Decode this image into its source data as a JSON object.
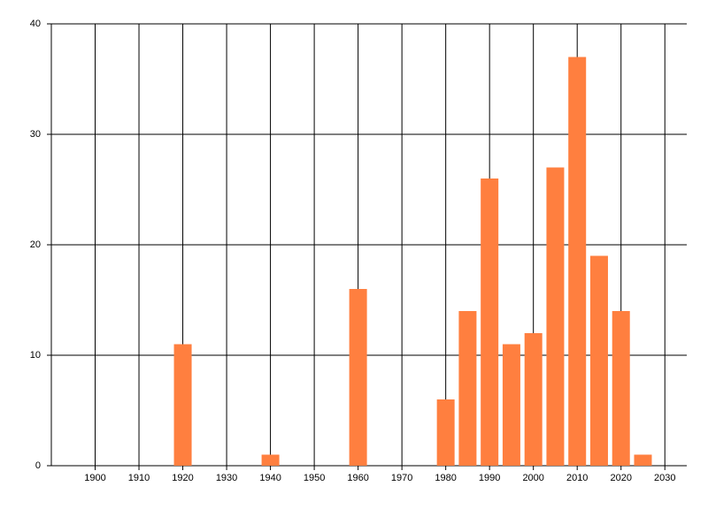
{
  "chart_data": {
    "type": "bar",
    "x": [
      1920,
      1940,
      1960,
      1980,
      1985,
      1990,
      1995,
      2000,
      2005,
      2010,
      2015,
      2020,
      2025
    ],
    "values": [
      11,
      1,
      16,
      6,
      14,
      26,
      11,
      12,
      27,
      37,
      19,
      14,
      1
    ],
    "color": "#ff7f3f",
    "xlim": [
      1890,
      2035
    ],
    "xticks": [
      1900,
      1910,
      1920,
      1930,
      1940,
      1950,
      1960,
      1970,
      1980,
      1990,
      2000,
      2010,
      2020,
      2030
    ],
    "ylim": [
      0,
      40
    ],
    "yticks": [
      0,
      10,
      20,
      30,
      40
    ],
    "grid": true
  }
}
